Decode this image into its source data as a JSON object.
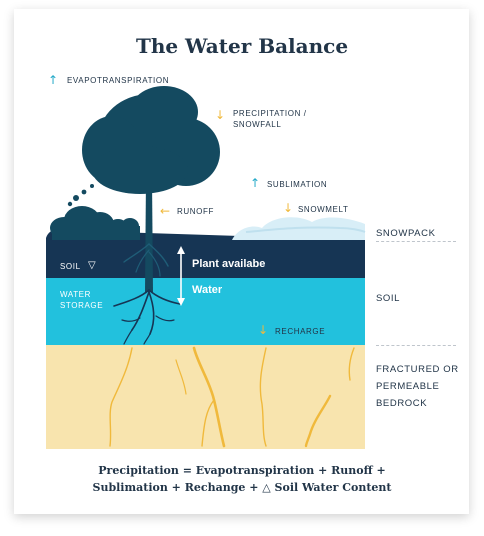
{
  "title": "The Water Balance",
  "labels": {
    "evapotranspiration": "EVAPOTRANSPIRATION",
    "precipitation_line1": "PRECIPITATION /",
    "precipitation_line2": "SNOWFALL",
    "sublimation": "SUBLIMATION",
    "runoff": "RUNOFF",
    "snowmelt": "SNOWMELT",
    "soil": "SOIL",
    "water_storage_line1": "WATER",
    "water_storage_line2": "STORAGE",
    "plant_available": "Plant availabe",
    "water": "Water",
    "recharge": "RECHARGE"
  },
  "side_labels": {
    "snowpack": "SNOWPACK",
    "soil": "SOIL",
    "bedrock_line1": "FRACTURED OR",
    "bedrock_line2": "PERMEABLE",
    "bedrock_line3": "BEDROCK"
  },
  "formula": {
    "line1": "Precipitation = Evapotranspiration + Runoff +",
    "line2": "Sublimation + Rechange + △ Soil Water Content"
  },
  "icons": {
    "up": "arrow-up-icon",
    "down": "arrow-down-icon",
    "left": "arrow-left-icon",
    "soil_marker": "triangle-down-icon"
  },
  "colors": {
    "title": "#223548",
    "tree": "#144a60",
    "soil_dark": "#163554",
    "water_storage": "#22c1dd",
    "bedrock": "#f8e4ae",
    "fracture": "#f0b93c",
    "snow": "#d8eef7",
    "arrow_up": "#23a9c8",
    "arrow_down": "#f0b93c"
  }
}
